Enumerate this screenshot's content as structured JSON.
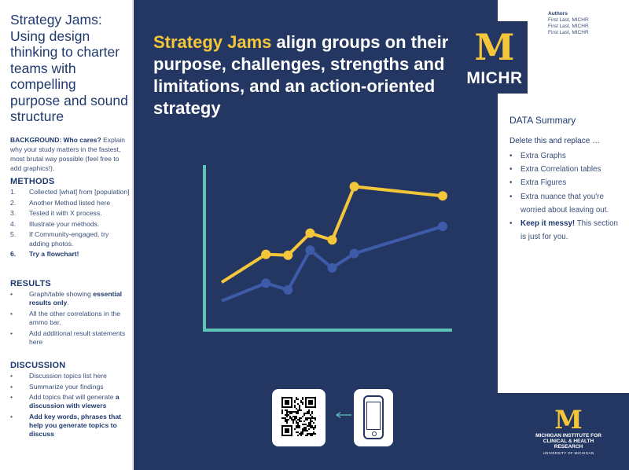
{
  "left": {
    "title": "Strategy Jams: Using design thinking to charter teams with compelling purpose and sound structure",
    "background_label": "BACKGROUND: Who cares?",
    "background_text": " Explain why your study matters in the fastest, most brutal way possible (feel free to add graphics!).",
    "methods": {
      "heading": "METHODS",
      "items": [
        {
          "marker": "1.",
          "text": "Collected [what] from [population]"
        },
        {
          "marker": "2.",
          "text": "Another Method listed here"
        },
        {
          "marker": "3.",
          "text": "Tested it with X process."
        },
        {
          "marker": "4.",
          "text": "Illustrate your methods."
        },
        {
          "marker": "5.",
          "text": "If Community-engaged, try adding photos."
        },
        {
          "marker": "6.",
          "text": "Try a flowchart!"
        }
      ]
    },
    "results": {
      "heading": "RESULTS",
      "items": [
        {
          "marker": "•",
          "pre": "Graph/table showing ",
          "bold": "essential results only",
          "post": "."
        },
        {
          "marker": "•",
          "pre": "All the other correlations in the ammo bar.",
          "bold": "",
          "post": ""
        },
        {
          "marker": "•",
          "pre": "Add additional result statements here",
          "bold": "",
          "post": ""
        }
      ]
    },
    "discussion": {
      "heading": "DISCUSSION",
      "items": [
        {
          "marker": "•",
          "pre": "Discussion topics list here",
          "bold": ""
        },
        {
          "marker": "•",
          "pre": "Summarize your findings",
          "bold": ""
        },
        {
          "marker": "•",
          "pre": "Add topics that will generate ",
          "bold": "a discussion with viewers"
        },
        {
          "marker": "•",
          "pre": "",
          "bold": "Add key words, phrases that help you generate topics to discuss"
        }
      ]
    }
  },
  "center": {
    "headline_highlight": "Strategy Jams",
    "headline_rest": " align groups on their purpose, challenges, strengths and limitations, and an action-oriented strategy"
  },
  "chart_data": {
    "type": "line",
    "x": [
      1,
      2,
      3,
      4,
      5,
      6,
      7
    ],
    "series": [
      {
        "values": [
          0.95,
          2.6,
          2.55,
          3.85,
          3.45,
          6.6,
          6.05
        ],
        "color": "#f4c63a"
      },
      {
        "values": [
          -0.15,
          0.9,
          0.5,
          2.85,
          1.8,
          2.65,
          4.25
        ],
        "color": "#3d5ba9"
      }
    ],
    "x_positions": [
      0,
      2,
      3,
      4,
      5,
      6,
      10
    ],
    "ylim": [
      -1.5,
      7.5
    ],
    "axis_color": "#5cc4b6",
    "grid": false
  },
  "right": {
    "authors_label": "Authors",
    "authors": [
      "First Last, MICHR",
      "First Last, MICHR",
      "First Last, MICHR"
    ],
    "logo_letter": "M",
    "logo_name": "MICHR",
    "data_summary": "DATA Summary",
    "delete_text": "Delete this and replace  …",
    "items": [
      {
        "pre": "Extra Graphs",
        "bold": "",
        "post": ""
      },
      {
        "pre": "Extra Correlation tables",
        "bold": "",
        "post": ""
      },
      {
        "pre": "Extra Figures",
        "bold": "",
        "post": ""
      },
      {
        "pre": "Extra nuance that you're worried about leaving out.",
        "bold": "",
        "post": ""
      },
      {
        "pre": "",
        "bold": "Keep it messy!",
        "post": " This section is just for you."
      }
    ],
    "institute_letter": "M",
    "institute_name": "MICHIGAN INSTITUTE FOR CLINICAL & HEALTH RESEARCH",
    "university": "UNIVERSITY OF MICHIGAN"
  },
  "colors": {
    "navy": "#243763",
    "maize": "#f4c63a",
    "blue_series": "#3d5ba9",
    "teal_axis": "#5cc4b6",
    "title_text": "#1f3a6e"
  },
  "icons": [
    "qr-code-icon",
    "arrow-left-icon",
    "smartphone-icon"
  ]
}
